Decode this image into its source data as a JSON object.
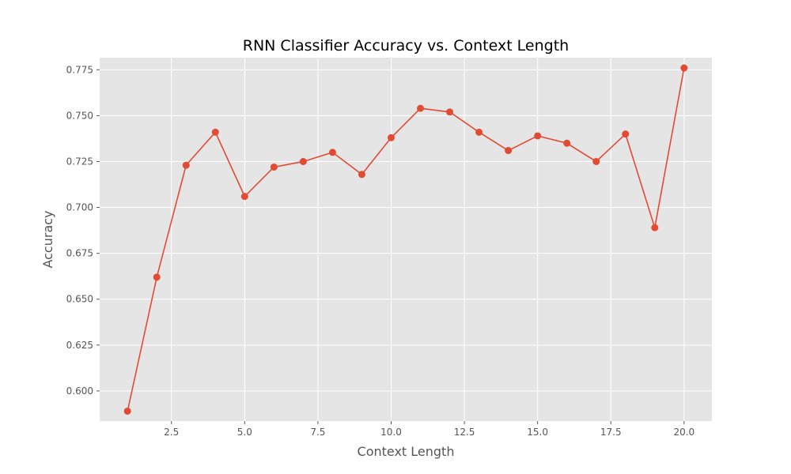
{
  "chart_data": {
    "type": "line",
    "title": "RNN Classifier Accuracy vs. Context Length",
    "xlabel": "Context Length",
    "ylabel": "Accuracy",
    "xlim": [
      0.05,
      20.95
    ],
    "ylim": [
      0.5836,
      0.7816
    ],
    "xticks": [
      2.5,
      5.0,
      7.5,
      10.0,
      12.5,
      15.0,
      17.5,
      20.0
    ],
    "xtick_labels": [
      "2.5",
      "5.0",
      "7.5",
      "10.0",
      "12.5",
      "15.0",
      "17.5",
      "20.0"
    ],
    "yticks": [
      0.6,
      0.625,
      0.65,
      0.675,
      0.7,
      0.725,
      0.75,
      0.775
    ],
    "ytick_labels": [
      "0.600",
      "0.625",
      "0.650",
      "0.675",
      "0.700",
      "0.725",
      "0.750",
      "0.775"
    ],
    "grid": true,
    "series": [
      {
        "color": "#e24a33",
        "marker": "circle",
        "x": [
          1,
          2,
          3,
          4,
          5,
          6,
          7,
          8,
          9,
          10,
          11,
          12,
          13,
          14,
          15,
          16,
          17,
          18,
          19,
          20
        ],
        "y": [
          0.589,
          0.662,
          0.723,
          0.741,
          0.706,
          0.722,
          0.725,
          0.73,
          0.718,
          0.738,
          0.754,
          0.752,
          0.741,
          0.731,
          0.739,
          0.735,
          0.725,
          0.74,
          0.689,
          0.776
        ]
      }
    ]
  },
  "style": {
    "plot_background": "#e5e5e5",
    "grid_color": "#ffffff"
  }
}
